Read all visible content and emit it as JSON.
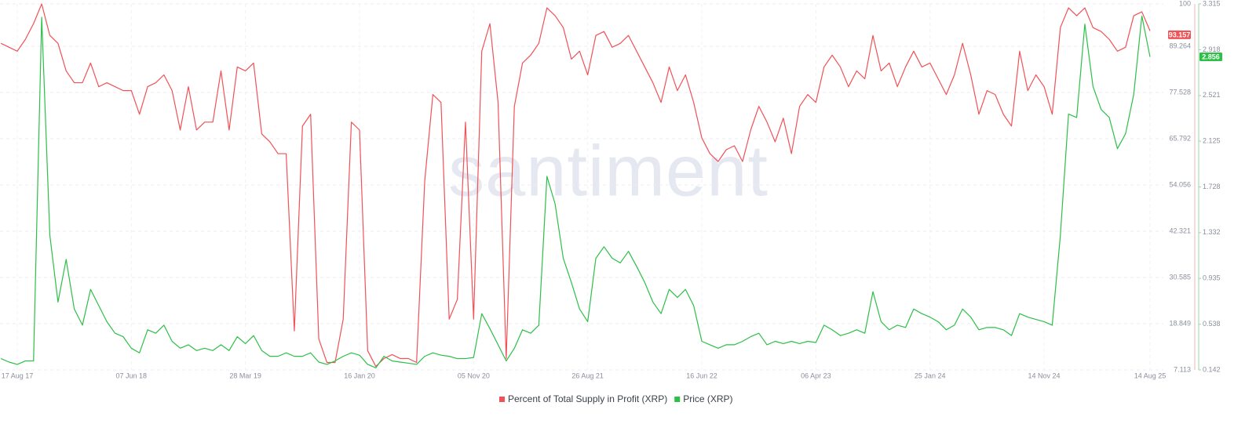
{
  "chart_data": {
    "type": "line",
    "watermark": "santiment",
    "categories": [
      null,
      null,
      "17 Aug 17",
      null,
      null,
      null,
      null,
      null,
      null,
      null,
      null,
      null,
      null,
      null,
      null,
      null,
      "07 Jun 18",
      null,
      null,
      null,
      null,
      null,
      null,
      null,
      null,
      null,
      null,
      null,
      null,
      null,
      "28 Mar 19",
      null,
      null,
      null,
      null,
      null,
      null,
      null,
      null,
      null,
      null,
      null,
      null,
      null,
      "16 Jan 20",
      null,
      null,
      null,
      null,
      null,
      null,
      null,
      null,
      null,
      null,
      null,
      null,
      null,
      "05 Nov 20",
      null,
      null,
      null,
      null,
      null,
      null,
      null,
      null,
      null,
      null,
      null,
      null,
      null,
      "26 Aug 21",
      null,
      null,
      null,
      null,
      null,
      null,
      null,
      null,
      null,
      null,
      null,
      null,
      null,
      "16 Jun 22",
      null,
      null,
      null,
      null,
      null,
      null,
      null,
      null,
      null,
      null,
      null,
      null,
      null,
      "06 Apr 23",
      null,
      null,
      null,
      null,
      null,
      null,
      null,
      null,
      null,
      null,
      null,
      null,
      null,
      "25 Jan 24",
      null,
      null,
      null,
      null,
      null,
      null,
      null,
      null,
      null,
      null,
      null,
      null,
      null,
      "14 Nov 24",
      null,
      null,
      null,
      null,
      null,
      null,
      null,
      null,
      null,
      null,
      null,
      null,
      "14 Aug 25"
    ],
    "series": [
      {
        "name": "Percent of Total Supply in Profit (XRP)",
        "color": "#ef5257",
        "values": [
          90,
          89,
          88,
          91,
          95,
          100,
          92,
          90,
          83,
          80,
          80,
          85,
          79,
          80,
          79,
          78,
          78,
          72,
          79,
          80,
          82,
          78,
          68,
          79,
          68,
          70,
          70,
          83,
          68,
          84,
          83,
          85,
          67,
          65,
          62,
          62,
          17,
          69,
          72,
          15,
          9,
          9,
          20,
          70,
          68,
          12,
          8,
          10,
          11,
          10,
          10,
          9,
          55,
          77,
          75,
          20,
          25,
          70,
          20,
          88,
          95,
          75,
          10,
          74,
          85,
          87,
          90,
          99,
          97,
          94,
          86,
          88,
          82,
          92,
          93,
          89,
          90,
          92,
          88,
          84,
          80,
          75,
          84,
          78,
          82,
          75,
          66,
          62,
          60,
          63,
          64,
          60,
          68,
          74,
          70,
          65,
          71,
          62,
          74,
          77,
          75,
          84,
          87,
          84,
          79,
          83,
          81,
          92,
          83,
          85,
          79,
          84,
          88,
          84,
          85,
          81,
          77,
          82,
          90,
          82,
          72,
          78,
          77,
          72,
          69,
          88,
          78,
          82,
          79,
          72,
          94,
          99,
          97,
          99,
          94,
          93,
          91,
          88,
          89,
          97,
          98,
          93.157
        ]
      },
      {
        "name": "Price (XRP)",
        "color": "#2dbf48",
        "axis": "y2",
        "values": [
          0.24,
          0.21,
          0.19,
          0.22,
          0.22,
          3.2,
          1.31,
          0.73,
          1.1,
          0.67,
          0.53,
          0.84,
          0.7,
          0.56,
          0.46,
          0.43,
          0.33,
          0.29,
          0.49,
          0.46,
          0.53,
          0.39,
          0.33,
          0.36,
          0.31,
          0.33,
          0.31,
          0.36,
          0.31,
          0.43,
          0.37,
          0.44,
          0.31,
          0.26,
          0.26,
          0.29,
          0.26,
          0.26,
          0.29,
          0.21,
          0.19,
          0.22,
          0.26,
          0.29,
          0.27,
          0.19,
          0.16,
          0.26,
          0.22,
          0.21,
          0.2,
          0.19,
          0.26,
          0.29,
          0.27,
          0.26,
          0.24,
          0.24,
          0.25,
          0.63,
          0.5,
          0.36,
          0.22,
          0.33,
          0.49,
          0.46,
          0.53,
          1.82,
          1.58,
          1.11,
          0.9,
          0.67,
          0.56,
          1.11,
          1.21,
          1.11,
          1.07,
          1.17,
          1.04,
          0.9,
          0.73,
          0.63,
          0.84,
          0.77,
          0.84,
          0.7,
          0.39,
          0.36,
          0.33,
          0.36,
          0.36,
          0.39,
          0.43,
          0.46,
          0.36,
          0.39,
          0.37,
          0.39,
          0.37,
          0.39,
          0.38,
          0.53,
          0.49,
          0.44,
          0.46,
          0.49,
          0.46,
          0.82,
          0.56,
          0.49,
          0.53,
          0.51,
          0.67,
          0.63,
          0.6,
          0.56,
          0.49,
          0.53,
          0.67,
          0.6,
          0.49,
          0.51,
          0.51,
          0.49,
          0.44,
          0.63,
          0.6,
          0.58,
          0.56,
          0.53,
          1.31,
          2.36,
          2.33,
          3.14,
          2.6,
          2.4,
          2.33,
          2.06,
          2.19,
          2.53,
          3.21,
          2.856
        ]
      }
    ],
    "ylim": [
      7.113,
      100
    ],
    "yticks": [
      7.113,
      18.849,
      30.585,
      42.321,
      54.056,
      65.792,
      77.528,
      89.264,
      100
    ],
    "y2lim": [
      0.142,
      3.315
    ],
    "y2ticks": [
      0.142,
      0.538,
      0.935,
      1.332,
      1.728,
      2.125,
      2.521,
      2.918,
      3.315
    ],
    "grid": true,
    "legend": "bottom"
  }
}
